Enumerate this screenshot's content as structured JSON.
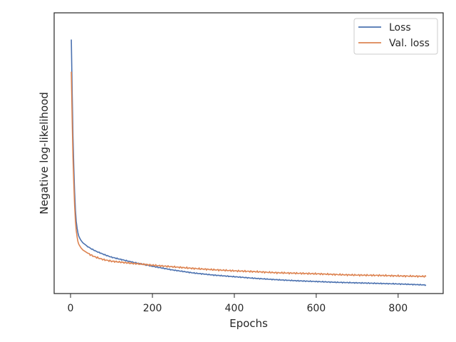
{
  "chart_data": {
    "type": "line",
    "title": "",
    "xlabel": "Epochs",
    "ylabel": "Negative log-likelihood",
    "xlim": [
      -40,
      910
    ],
    "ylim": [
      0.5,
      11.0
    ],
    "xticks": [
      0,
      200,
      400,
      600,
      800
    ],
    "xtick_labels": [
      "0",
      "200",
      "400",
      "600",
      "800"
    ],
    "yticks_visible": false,
    "grid": false,
    "legend": {
      "position": "top-right",
      "entries": [
        "Loss",
        "Val. loss"
      ]
    },
    "series": [
      {
        "name": "Loss",
        "color": "#4c72b0",
        "x": [
          2,
          4,
          6,
          8,
          10,
          12,
          14,
          16,
          18,
          20,
          25,
          30,
          40,
          50,
          60,
          80,
          100,
          125,
          150,
          175,
          200,
          250,
          300,
          350,
          400,
          450,
          500,
          550,
          600,
          650,
          700,
          750,
          800,
          868
        ],
        "y": [
          10.0,
          8.0,
          6.4,
          5.2,
          4.3,
          3.6,
          3.2,
          2.95,
          2.78,
          2.65,
          2.5,
          2.4,
          2.28,
          2.18,
          2.1,
          1.97,
          1.86,
          1.77,
          1.68,
          1.6,
          1.52,
          1.38,
          1.27,
          1.19,
          1.13,
          1.07,
          1.02,
          0.98,
          0.95,
          0.92,
          0.9,
          0.88,
          0.86,
          0.82
        ]
      },
      {
        "name": "Val. loss",
        "color": "#dd8452",
        "x": [
          2,
          4,
          6,
          8,
          10,
          12,
          14,
          16,
          18,
          20,
          25,
          30,
          40,
          50,
          60,
          80,
          100,
          125,
          150,
          175,
          200,
          250,
          300,
          350,
          400,
          450,
          500,
          550,
          600,
          650,
          700,
          750,
          800,
          868
        ],
        "y": [
          8.8,
          7.0,
          5.6,
          4.6,
          3.8,
          3.2,
          2.85,
          2.62,
          2.45,
          2.35,
          2.22,
          2.13,
          2.03,
          1.94,
          1.87,
          1.77,
          1.71,
          1.67,
          1.63,
          1.6,
          1.56,
          1.5,
          1.44,
          1.39,
          1.35,
          1.32,
          1.28,
          1.26,
          1.24,
          1.21,
          1.19,
          1.18,
          1.16,
          1.14
        ]
      }
    ]
  }
}
